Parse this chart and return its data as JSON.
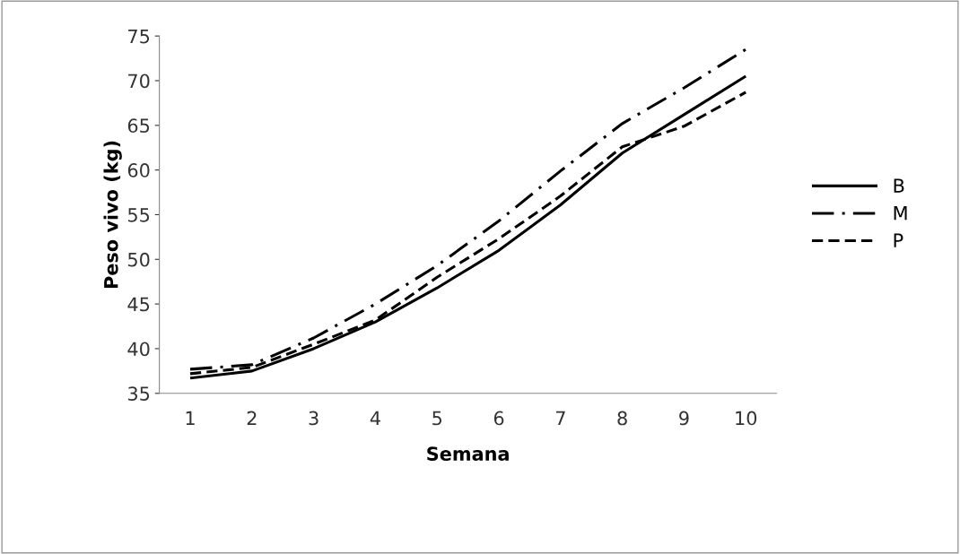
{
  "chart_data": {
    "type": "line",
    "xlabel": "Semana",
    "ylabel": "Peso vivo (kg)",
    "categories": [
      "1",
      "2",
      "3",
      "4",
      "5",
      "6",
      "7",
      "8",
      "9",
      "10"
    ],
    "series": [
      {
        "name": "B",
        "color": "#000000",
        "line_style": "solid",
        "values": [
          36.7,
          37.5,
          40.0,
          43.0,
          46.8,
          51.0,
          56.1,
          61.9,
          66.2,
          70.5
        ]
      },
      {
        "name": "M",
        "color": "#000000",
        "line_style": "dashdot",
        "values": [
          37.7,
          38.2,
          41.2,
          45.0,
          49.3,
          54.3,
          59.9,
          65.2,
          69.2,
          73.5
        ]
      },
      {
        "name": "P",
        "color": "#000000",
        "line_style": "dashed",
        "values": [
          37.2,
          37.9,
          40.5,
          43.2,
          48.0,
          52.3,
          57.1,
          62.6,
          64.9,
          68.7
        ]
      }
    ],
    "ylim": [
      35,
      75
    ],
    "yticks": [
      35,
      40,
      45,
      50,
      55,
      60,
      65,
      70,
      75
    ],
    "grid": false,
    "legend": "right"
  }
}
